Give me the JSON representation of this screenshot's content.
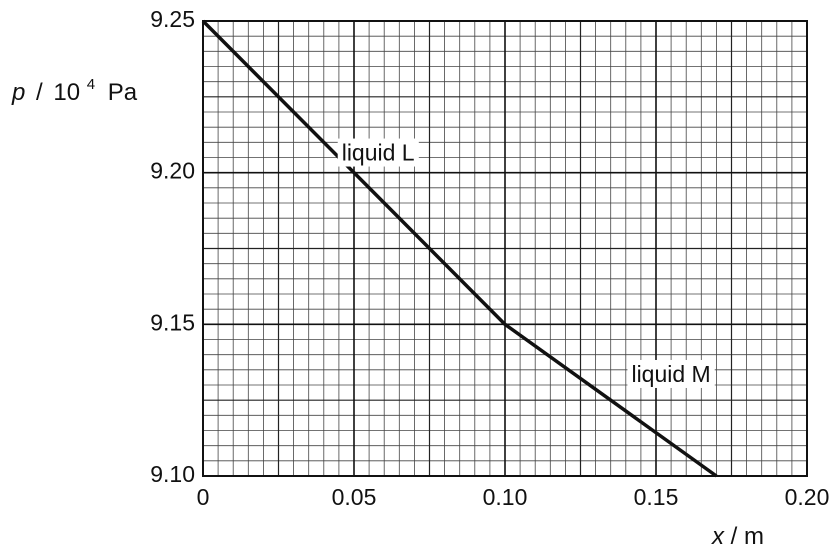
{
  "chart_data": {
    "type": "line",
    "xlim": [
      0,
      0.2
    ],
    "ylim": [
      9.1,
      9.25
    ],
    "x_ticks": [
      "0",
      "0.05",
      "0.10",
      "0.15",
      "0.20"
    ],
    "y_ticks": [
      "9.10",
      "9.15",
      "9.20",
      "9.25"
    ],
    "x_tick_values": [
      0,
      0.05,
      0.1,
      0.15,
      0.2
    ],
    "y_tick_values": [
      9.1,
      9.15,
      9.2,
      9.25
    ],
    "xlabel": {
      "variable": "x",
      "unit": "m"
    },
    "ylabel": {
      "variable": "p",
      "unit_base": "10",
      "unit_exp": "4",
      "unit_name": "Pa"
    },
    "grid": true,
    "series": [
      {
        "x": [
          0,
          0.1,
          0.17
        ],
        "y": [
          9.25,
          9.15,
          9.1
        ]
      }
    ],
    "annotations": [
      {
        "text": "liquid L",
        "x": 0.058,
        "y": 9.206
      },
      {
        "text": "liquid M",
        "x": 0.155,
        "y": 9.133
      }
    ]
  }
}
